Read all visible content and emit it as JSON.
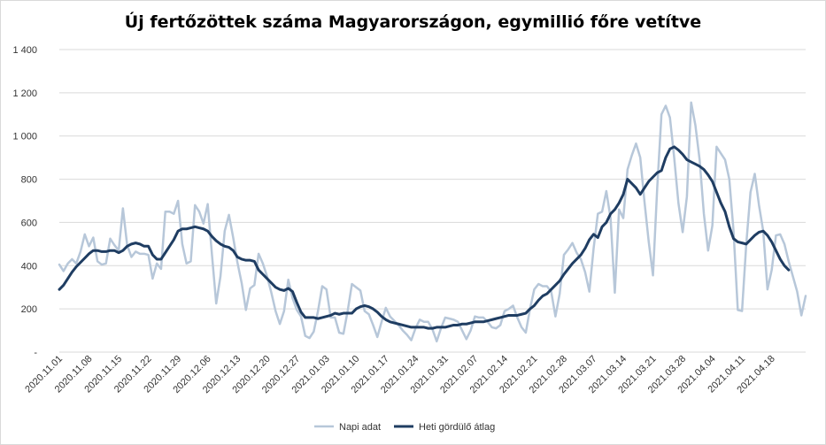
{
  "chart_data": {
    "type": "line",
    "title": "Új fertőzöttek száma Magyarországon, egymillió főre vetítve",
    "xlabel": "",
    "ylabel": "",
    "ylim": [
      0,
      1400
    ],
    "y_ticks": [
      {
        "value": 0,
        "label": "-"
      },
      {
        "value": 200,
        "label": "200"
      },
      {
        "value": 400,
        "label": "400"
      },
      {
        "value": 600,
        "label": "600"
      },
      {
        "value": 800,
        "label": "800"
      },
      {
        "value": 1000,
        "label": "1 000"
      },
      {
        "value": 1200,
        "label": "1 200"
      },
      {
        "value": 1400,
        "label": "1 400"
      }
    ],
    "x_tick_labels": [
      "2020.11.01",
      "2020.11.08",
      "2020.11.15",
      "2020.11.22",
      "2020.11.29",
      "2020.12.06",
      "2020.12.13",
      "2020.12.20",
      "2020.12.27",
      "2021.01.03",
      "2021.01.10",
      "2021.01.17",
      "2021.01.24",
      "2021.01.31",
      "2021.02.07",
      "2021.02.14",
      "2021.02.21",
      "2021.02.28",
      "2021.03.07",
      "2021.03.14",
      "2021.03.21",
      "2021.03.28",
      "2021.04.04",
      "2021.04.11",
      "2021.04.18"
    ],
    "grid": true,
    "legend_position": "bottom",
    "series": [
      {
        "name": "Napi adat",
        "color": "#b7c7d9",
        "values": [
          405,
          375,
          410,
          430,
          410,
          465,
          545,
          490,
          530,
          420,
          405,
          410,
          525,
          495,
          470,
          665,
          495,
          440,
          465,
          455,
          455,
          450,
          340,
          410,
          385,
          650,
          650,
          640,
          700,
          500,
          410,
          420,
          680,
          650,
          595,
          685,
          450,
          225,
          350,
          560,
          635,
          530,
          415,
          320,
          195,
          295,
          310,
          455,
          410,
          350,
          275,
          190,
          130,
          190,
          335,
          250,
          195,
          165,
          75,
          65,
          95,
          190,
          305,
          290,
          160,
          160,
          90,
          85,
          190,
          315,
          300,
          285,
          190,
          175,
          125,
          70,
          140,
          205,
          165,
          145,
          125,
          100,
          80,
          55,
          110,
          150,
          140,
          140,
          105,
          50,
          110,
          160,
          155,
          150,
          140,
          100,
          60,
          100,
          165,
          160,
          160,
          140,
          115,
          110,
          125,
          190,
          200,
          215,
          160,
          115,
          90,
          200,
          290,
          315,
          305,
          305,
          280,
          165,
          270,
          450,
          475,
          505,
          460,
          430,
          370,
          280,
          480,
          640,
          650,
          745,
          620,
          275,
          660,
          620,
          845,
          910,
          965,
          900,
          695,
          510,
          355,
          760,
          1100,
          1140,
          1085,
          900,
          690,
          555,
          720,
          1155,
          1050,
          890,
          640,
          470,
          585,
          950,
          920,
          890,
          800,
          560,
          195,
          190,
          500,
          740,
          825,
          680,
          560,
          290,
          380,
          540,
          545,
          500,
          420,
          350,
          280,
          170,
          260
        ],
        "values_note": ""
      },
      {
        "name": "Heti gördülő átlag",
        "color": "#1f3d62",
        "values": [
          290,
          310,
          340,
          370,
          395,
          415,
          435,
          455,
          470,
          470,
          465,
          465,
          470,
          470,
          460,
          470,
          490,
          500,
          505,
          500,
          490,
          490,
          450,
          430,
          430,
          460,
          490,
          520,
          560,
          570,
          570,
          575,
          580,
          575,
          570,
          560,
          535,
          515,
          500,
          490,
          485,
          470,
          440,
          430,
          425,
          425,
          420,
          380,
          360,
          340,
          320,
          300,
          290,
          285,
          295,
          280,
          230,
          185,
          160,
          160,
          160,
          155,
          160,
          165,
          170,
          180,
          175,
          180,
          180,
          180,
          200,
          210,
          215,
          210,
          200,
          185,
          165,
          150,
          140,
          135,
          130,
          125,
          120,
          115,
          115,
          115,
          115,
          110,
          110,
          115,
          115,
          115,
          120,
          125,
          125,
          130,
          130,
          135,
          140,
          140,
          140,
          145,
          150,
          155,
          160,
          165,
          170,
          170,
          170,
          175,
          180,
          200,
          215,
          240,
          260,
          270,
          290,
          310,
          330,
          360,
          385,
          410,
          430,
          450,
          480,
          520,
          545,
          530,
          580,
          600,
          640,
          660,
          690,
          730,
          800,
          780,
          760,
          730,
          760,
          790,
          810,
          830,
          840,
          900,
          940,
          950,
          935,
          915,
          890,
          880,
          870,
          860,
          845,
          820,
          790,
          740,
          690,
          650,
          580,
          525,
          510,
          505,
          500,
          520,
          540,
          555,
          560,
          540,
          510,
          470,
          430,
          400,
          380
        ],
        "values_note": ""
      }
    ]
  }
}
